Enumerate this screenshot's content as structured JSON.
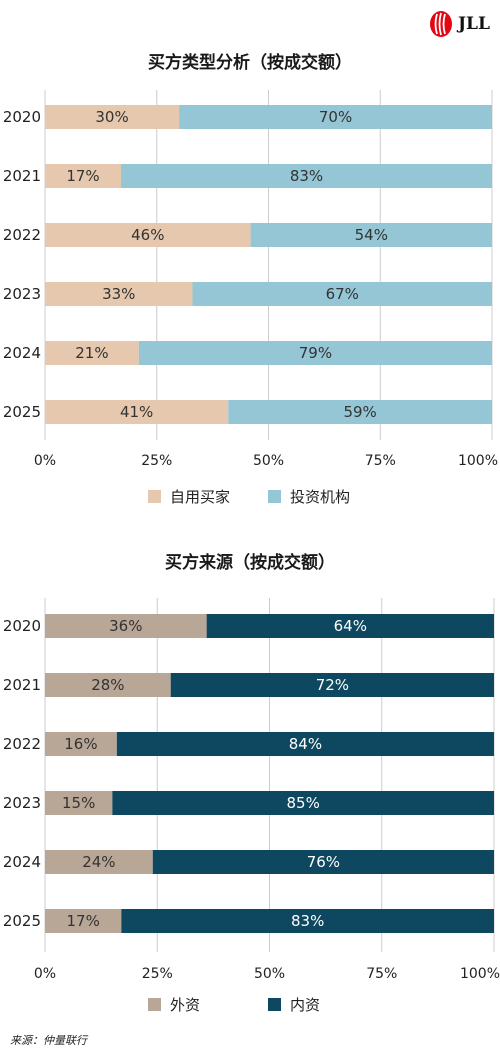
{
  "brand": {
    "name": "JLL"
  },
  "colors": {
    "owner": "#e5c8ad",
    "institution": "#95c6d6",
    "foreign": "#b8a697",
    "domestic": "#0d4760",
    "grid": "#cccccc"
  },
  "source": "来源：仲量联行",
  "chart_data": [
    {
      "type": "bar",
      "orientation": "horizontal",
      "stacked": true,
      "title": "买方类型分析（按成交额）",
      "categories": [
        "2020",
        "2021",
        "2022",
        "2023",
        "2024",
        "2025"
      ],
      "series": [
        {
          "name": "自用买家",
          "values": [
            30,
            17,
            46,
            33,
            21,
            41
          ],
          "color": "#e5c8ad",
          "label_color": "#333333"
        },
        {
          "name": "投资机构",
          "values": [
            70,
            83,
            54,
            67,
            79,
            59
          ],
          "color": "#95c6d6",
          "label_color": "#333333"
        }
      ],
      "xlim": [
        0,
        100
      ],
      "ticks": [
        "0%",
        "25%",
        "50%",
        "75%",
        "100%"
      ],
      "grid": true,
      "legend": "bottom"
    },
    {
      "type": "bar",
      "orientation": "horizontal",
      "stacked": true,
      "title": "买方来源（按成交额）",
      "categories": [
        "2020",
        "2021",
        "2022",
        "2023",
        "2024",
        "2025"
      ],
      "series": [
        {
          "name": "外资",
          "values": [
            36,
            28,
            16,
            15,
            24,
            17
          ],
          "color": "#b8a697",
          "label_color": "#333333"
        },
        {
          "name": "内资",
          "values": [
            64,
            72,
            84,
            85,
            76,
            83
          ],
          "color": "#0d4760",
          "label_color": "#ffffff"
        }
      ],
      "xlim": [
        0,
        100
      ],
      "ticks": [
        "0%",
        "25%",
        "50%",
        "75%",
        "100%"
      ],
      "grid": true,
      "legend": "bottom"
    }
  ]
}
